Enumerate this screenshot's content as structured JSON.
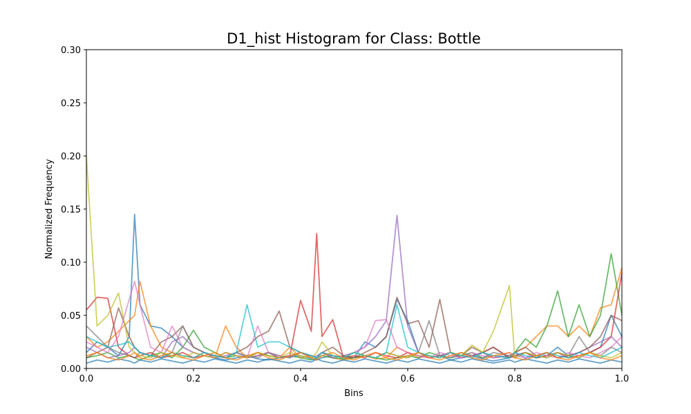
{
  "chart_data": {
    "type": "line",
    "title": "D1_hist Histogram for Class: Bottle",
    "xlabel": "Bins",
    "ylabel": "Normalized Frequency",
    "xlim": [
      0,
      1
    ],
    "ylim": [
      0,
      0.3
    ],
    "x_ticks": [
      "0.0",
      "0.2",
      "0.4",
      "0.6",
      "0.8",
      "1.0"
    ],
    "y_ticks": [
      "0.00",
      "0.05",
      "0.10",
      "0.15",
      "0.20",
      "0.25",
      "0.30"
    ],
    "grid": false,
    "legend": "none",
    "x": [
      0.0,
      0.02,
      0.04,
      0.06,
      0.08,
      0.09,
      0.1,
      0.12,
      0.14,
      0.16,
      0.18,
      0.2,
      0.22,
      0.24,
      0.26,
      0.28,
      0.3,
      0.32,
      0.34,
      0.36,
      0.38,
      0.4,
      0.42,
      0.43,
      0.44,
      0.46,
      0.48,
      0.5,
      0.52,
      0.54,
      0.56,
      0.58,
      0.6,
      0.62,
      0.64,
      0.66,
      0.68,
      0.7,
      0.72,
      0.74,
      0.76,
      0.79,
      0.8,
      0.82,
      0.84,
      0.86,
      0.88,
      0.9,
      0.92,
      0.94,
      0.96,
      0.98,
      1.0
    ],
    "series": [
      {
        "color": "#1f77b4",
        "values": [
          0.015,
          0.025,
          0.02,
          0.012,
          0.03,
          0.145,
          0.06,
          0.04,
          0.038,
          0.03,
          0.02,
          0.015,
          0.012,
          0.01,
          0.008,
          0.01,
          0.012,
          0.009,
          0.008,
          0.01,
          0.011,
          0.012,
          0.009,
          0.008,
          0.01,
          0.012,
          0.011,
          0.01,
          0.025,
          0.02,
          0.03,
          0.065,
          0.045,
          0.015,
          0.01,
          0.012,
          0.008,
          0.01,
          0.012,
          0.009,
          0.007,
          0.01,
          0.012,
          0.015,
          0.01,
          0.012,
          0.02,
          0.012,
          0.01,
          0.015,
          0.02,
          0.05,
          0.03
        ]
      },
      {
        "color": "#ff7f0e",
        "values": [
          0.03,
          0.02,
          0.025,
          0.035,
          0.045,
          0.05,
          0.082,
          0.04,
          0.02,
          0.015,
          0.012,
          0.01,
          0.015,
          0.01,
          0.04,
          0.02,
          0.01,
          0.015,
          0.012,
          0.01,
          0.02,
          0.01,
          0.012,
          0.01,
          0.015,
          0.01,
          0.008,
          0.01,
          0.012,
          0.009,
          0.01,
          0.02,
          0.015,
          0.01,
          0.012,
          0.01,
          0.015,
          0.01,
          0.012,
          0.015,
          0.01,
          0.012,
          0.015,
          0.02,
          0.03,
          0.04,
          0.04,
          0.03,
          0.04,
          0.03,
          0.057,
          0.06,
          0.095
        ]
      },
      {
        "color": "#2ca02c",
        "values": [
          0.01,
          0.012,
          0.015,
          0.01,
          0.012,
          0.01,
          0.008,
          0.012,
          0.015,
          0.01,
          0.02,
          0.036,
          0.02,
          0.015,
          0.01,
          0.012,
          0.01,
          0.015,
          0.012,
          0.01,
          0.012,
          0.01,
          0.008,
          0.01,
          0.012,
          0.01,
          0.009,
          0.01,
          0.012,
          0.01,
          0.008,
          0.01,
          0.012,
          0.01,
          0.015,
          0.012,
          0.01,
          0.012,
          0.015,
          0.01,
          0.012,
          0.01,
          0.015,
          0.028,
          0.02,
          0.04,
          0.073,
          0.03,
          0.06,
          0.03,
          0.05,
          0.108,
          0.05
        ]
      },
      {
        "color": "#d62728",
        "values": [
          0.055,
          0.067,
          0.066,
          0.02,
          0.012,
          0.01,
          0.012,
          0.015,
          0.01,
          0.012,
          0.015,
          0.01,
          0.012,
          0.01,
          0.015,
          0.012,
          0.01,
          0.012,
          0.015,
          0.01,
          0.012,
          0.064,
          0.035,
          0.127,
          0.03,
          0.046,
          0.01,
          0.012,
          0.01,
          0.015,
          0.012,
          0.01,
          0.015,
          0.012,
          0.01,
          0.012,
          0.015,
          0.01,
          0.012,
          0.015,
          0.02,
          0.01,
          0.012,
          0.015,
          0.01,
          0.012,
          0.015,
          0.01,
          0.012,
          0.015,
          0.02,
          0.03,
          0.09
        ]
      },
      {
        "color": "#9467bd",
        "values": [
          0.02,
          0.015,
          0.01,
          0.012,
          0.015,
          0.02,
          0.015,
          0.012,
          0.01,
          0.025,
          0.03,
          0.02,
          0.015,
          0.01,
          0.012,
          0.015,
          0.01,
          0.012,
          0.015,
          0.01,
          0.012,
          0.015,
          0.01,
          0.012,
          0.015,
          0.01,
          0.012,
          0.015,
          0.02,
          0.03,
          0.045,
          0.144,
          0.04,
          0.015,
          0.01,
          0.012,
          0.015,
          0.01,
          0.012,
          0.015,
          0.01,
          0.012,
          0.015,
          0.01,
          0.012,
          0.015,
          0.01,
          0.012,
          0.015,
          0.02,
          0.025,
          0.03,
          0.02
        ]
      },
      {
        "color": "#8c564b",
        "values": [
          0.01,
          0.015,
          0.02,
          0.057,
          0.03,
          0.02,
          0.015,
          0.012,
          0.025,
          0.03,
          0.04,
          0.02,
          0.015,
          0.012,
          0.01,
          0.015,
          0.02,
          0.03,
          0.035,
          0.054,
          0.02,
          0.015,
          0.012,
          0.01,
          0.015,
          0.02,
          0.012,
          0.01,
          0.015,
          0.02,
          0.03,
          0.067,
          0.042,
          0.045,
          0.02,
          0.065,
          0.015,
          0.012,
          0.02,
          0.015,
          0.02,
          0.01,
          0.015,
          0.02,
          0.012,
          0.015,
          0.01,
          0.012,
          0.015,
          0.02,
          0.03,
          0.05,
          0.045
        ]
      },
      {
        "color": "#e377c2",
        "values": [
          0.025,
          0.02,
          0.015,
          0.03,
          0.065,
          0.082,
          0.06,
          0.02,
          0.015,
          0.04,
          0.02,
          0.015,
          0.012,
          0.01,
          0.015,
          0.012,
          0.01,
          0.04,
          0.015,
          0.012,
          0.01,
          0.015,
          0.012,
          0.01,
          0.015,
          0.012,
          0.01,
          0.015,
          0.02,
          0.045,
          0.046,
          0.02,
          0.015,
          0.012,
          0.01,
          0.015,
          0.012,
          0.01,
          0.015,
          0.012,
          0.01,
          0.015,
          0.012,
          0.01,
          0.015,
          0.012,
          0.01,
          0.015,
          0.012,
          0.01,
          0.015,
          0.02,
          0.03
        ]
      },
      {
        "color": "#7f7f7f",
        "values": [
          0.04,
          0.03,
          0.02,
          0.015,
          0.012,
          0.01,
          0.015,
          0.012,
          0.01,
          0.015,
          0.04,
          0.02,
          0.015,
          0.012,
          0.01,
          0.015,
          0.012,
          0.01,
          0.015,
          0.012,
          0.01,
          0.015,
          0.012,
          0.01,
          0.015,
          0.012,
          0.01,
          0.015,
          0.012,
          0.01,
          0.015,
          0.012,
          0.01,
          0.015,
          0.045,
          0.012,
          0.01,
          0.015,
          0.012,
          0.01,
          0.015,
          0.012,
          0.01,
          0.015,
          0.012,
          0.01,
          0.015,
          0.012,
          0.03,
          0.015,
          0.012,
          0.02,
          0.015
        ]
      },
      {
        "color": "#bcbd22",
        "values": [
          0.2,
          0.04,
          0.05,
          0.071,
          0.02,
          0.015,
          0.012,
          0.01,
          0.015,
          0.012,
          0.01,
          0.015,
          0.012,
          0.01,
          0.015,
          0.012,
          0.01,
          0.015,
          0.012,
          0.01,
          0.015,
          0.012,
          0.01,
          0.015,
          0.025,
          0.012,
          0.01,
          0.015,
          0.012,
          0.01,
          0.015,
          0.012,
          0.01,
          0.015,
          0.012,
          0.01,
          0.015,
          0.012,
          0.022,
          0.015,
          0.035,
          0.078,
          0.01,
          0.015,
          0.012,
          0.01,
          0.015,
          0.012,
          0.01,
          0.015,
          0.012,
          0.01,
          0.015
        ]
      },
      {
        "color": "#17becf",
        "values": [
          0.03,
          0.025,
          0.02,
          0.022,
          0.025,
          0.02,
          0.015,
          0.012,
          0.01,
          0.015,
          0.012,
          0.01,
          0.015,
          0.012,
          0.01,
          0.015,
          0.06,
          0.02,
          0.025,
          0.025,
          0.02,
          0.015,
          0.012,
          0.01,
          0.015,
          0.012,
          0.01,
          0.015,
          0.012,
          0.01,
          0.015,
          0.06,
          0.02,
          0.015,
          0.012,
          0.01,
          0.015,
          0.012,
          0.01,
          0.015,
          0.012,
          0.01,
          0.015,
          0.012,
          0.01,
          0.015,
          0.012,
          0.01,
          0.015,
          0.012,
          0.01,
          0.015,
          0.02
        ]
      },
      {
        "color": "#1f77b4",
        "values": [
          0.005,
          0.008,
          0.006,
          0.009,
          0.007,
          0.005,
          0.008,
          0.006,
          0.009,
          0.007,
          0.005,
          0.008,
          0.006,
          0.009,
          0.007,
          0.005,
          0.008,
          0.006,
          0.009,
          0.007,
          0.005,
          0.008,
          0.006,
          0.009,
          0.007,
          0.005,
          0.008,
          0.006,
          0.009,
          0.007,
          0.005,
          0.008,
          0.006,
          0.009,
          0.007,
          0.005,
          0.008,
          0.006,
          0.009,
          0.007,
          0.005,
          0.008,
          0.006,
          0.009,
          0.007,
          0.005,
          0.008,
          0.006,
          0.009,
          0.007,
          0.005,
          0.008,
          0.006
        ]
      },
      {
        "color": "#ff7f0e",
        "values": [
          0.012,
          0.015,
          0.01,
          0.008,
          0.012,
          0.015,
          0.01,
          0.008,
          0.012,
          0.015,
          0.01,
          0.008,
          0.012,
          0.015,
          0.01,
          0.008,
          0.012,
          0.015,
          0.01,
          0.008,
          0.012,
          0.015,
          0.01,
          0.008,
          0.012,
          0.015,
          0.01,
          0.008,
          0.012,
          0.015,
          0.01,
          0.008,
          0.012,
          0.015,
          0.01,
          0.008,
          0.012,
          0.015,
          0.01,
          0.008,
          0.012,
          0.015,
          0.01,
          0.008,
          0.012,
          0.015,
          0.01,
          0.008,
          0.012,
          0.015,
          0.01,
          0.008,
          0.012
        ]
      }
    ]
  }
}
